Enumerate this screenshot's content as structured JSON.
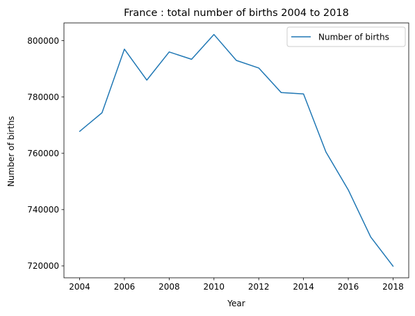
{
  "chart_data": {
    "type": "line",
    "title": "France : total number of births 2004 to 2018",
    "xlabel": "Year",
    "ylabel": "Number of births",
    "x": [
      2004,
      2005,
      2006,
      2007,
      2008,
      2009,
      2010,
      2011,
      2012,
      2013,
      2014,
      2015,
      2016,
      2017,
      2018
    ],
    "series": [
      {
        "name": "Number of births",
        "color": "#1f77b4",
        "values": [
          767800,
          774400,
          797000,
          786000,
          796000,
          793400,
          802200,
          793000,
          790300,
          781600,
          781100,
          760500,
          747000,
          730300,
          719900
        ]
      }
    ],
    "xticks": [
      "2004",
      "2006",
      "2008",
      "2010",
      "2012",
      "2014",
      "2016",
      "2018"
    ],
    "yticks": [
      "720000",
      "740000",
      "760000",
      "780000",
      "800000"
    ],
    "xlim": [
      2003.3,
      2018.7
    ],
    "ylim": [
      715785,
      806315
    ],
    "grid": false,
    "legend_position": "top-right"
  }
}
